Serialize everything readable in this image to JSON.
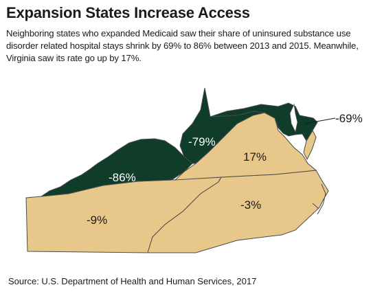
{
  "title": "Expansion States Increase Access",
  "subtitle": "Neighboring states who expanded Medicaid saw their share of uninsured substance use disorder related hospital stays shrink by 69% to 86% between 2013 and 2015. Meanwhile, Virginia saw its rate go up by 17%.",
  "source": "Source: U.S. Department of Health and Human Services, 2017",
  "colors": {
    "expansion": "#0f3d2a",
    "non_expansion": "#e8c88a",
    "border": "#4a4a4a"
  },
  "states": [
    {
      "id": "kentucky",
      "label": "-86%",
      "value": -86,
      "expanded": true
    },
    {
      "id": "west-virginia",
      "label": "-79%",
      "value": -79,
      "expanded": true
    },
    {
      "id": "maryland",
      "label": "-69%",
      "value": -69,
      "expanded": true
    },
    {
      "id": "virginia",
      "label": "17%",
      "value": 17,
      "expanded": false
    },
    {
      "id": "tennessee",
      "label": "-9%",
      "value": -9,
      "expanded": false
    },
    {
      "id": "north-carolina",
      "label": "-3%",
      "value": -3,
      "expanded": false
    }
  ]
}
